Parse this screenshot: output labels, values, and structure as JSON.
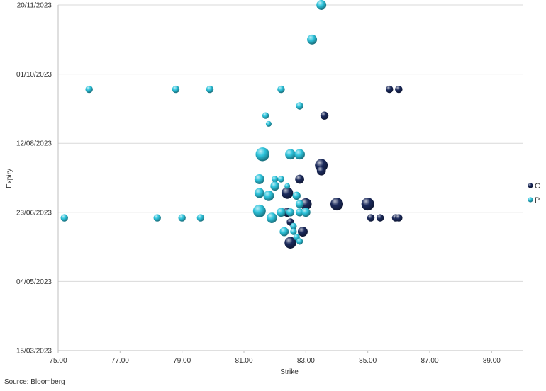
{
  "chart_data": {
    "type": "scatter",
    "xlabel": "Strike",
    "ylabel": "Expiry",
    "xlim": [
      75,
      90
    ],
    "x_ticks": [
      "75.00",
      "77.00",
      "79.00",
      "81.00",
      "83.00",
      "85.00",
      "87.00",
      "89.00"
    ],
    "x_tick_values": [
      75,
      77,
      79,
      81,
      83,
      85,
      87,
      89
    ],
    "y_ticks": [
      "15/03/2023",
      "04/05/2023",
      "23/06/2023",
      "12/08/2023",
      "01/10/2023",
      "20/11/2023"
    ],
    "y_tick_values": [
      "2023-03-15",
      "2023-05-04",
      "2023-06-23",
      "2023-08-12",
      "2023-10-01",
      "2023-11-20"
    ],
    "ylim": [
      "2023-03-15",
      "2023-11-20"
    ],
    "grid": "horizontal",
    "legend_position": "right",
    "bubble_size_note": "",
    "series": [
      {
        "name": "C",
        "color": "#1b2a5c",
        "points": [
          {
            "x": 85.7,
            "y": "2023-09-20",
            "size": 1.0
          },
          {
            "x": 86.0,
            "y": "2023-09-20",
            "size": 1.0
          },
          {
            "x": 83.6,
            "y": "2023-09-01",
            "size": 1.2
          },
          {
            "x": 83.5,
            "y": "2023-07-27",
            "size": 3.0
          },
          {
            "x": 83.5,
            "y": "2023-07-23",
            "size": 1.5
          },
          {
            "x": 82.8,
            "y": "2023-07-17",
            "size": 1.5
          },
          {
            "x": 82.4,
            "y": "2023-07-07",
            "size": 2.5
          },
          {
            "x": 84.0,
            "y": "2023-06-29",
            "size": 3.0
          },
          {
            "x": 85.0,
            "y": "2023-06-29",
            "size": 3.0
          },
          {
            "x": 83.0,
            "y": "2023-06-29",
            "size": 2.5
          },
          {
            "x": 82.4,
            "y": "2023-06-23",
            "size": 1.5
          },
          {
            "x": 85.1,
            "y": "2023-06-19",
            "size": 1.0
          },
          {
            "x": 85.4,
            "y": "2023-06-19",
            "size": 1.0
          },
          {
            "x": 85.9,
            "y": "2023-06-19",
            "size": 1.0
          },
          {
            "x": 86.0,
            "y": "2023-06-19",
            "size": 1.0
          },
          {
            "x": 82.5,
            "y": "2023-06-16",
            "size": 1.0
          },
          {
            "x": 82.9,
            "y": "2023-06-09",
            "size": 1.8
          },
          {
            "x": 82.5,
            "y": "2023-06-01",
            "size": 2.5
          }
        ]
      },
      {
        "name": "P",
        "color": "#2ec4dc",
        "points": [
          {
            "x": 83.5,
            "y": "2023-11-20",
            "size": 1.8
          },
          {
            "x": 83.2,
            "y": "2023-10-26",
            "size": 1.8
          },
          {
            "x": 76.0,
            "y": "2023-09-20",
            "size": 1.0
          },
          {
            "x": 78.8,
            "y": "2023-09-20",
            "size": 1.0
          },
          {
            "x": 79.9,
            "y": "2023-09-20",
            "size": 1.0
          },
          {
            "x": 82.2,
            "y": "2023-09-20",
            "size": 1.0
          },
          {
            "x": 82.8,
            "y": "2023-09-08",
            "size": 1.0
          },
          {
            "x": 81.7,
            "y": "2023-09-01",
            "size": 0.8
          },
          {
            "x": 81.8,
            "y": "2023-08-26",
            "size": 0.6
          },
          {
            "x": 81.6,
            "y": "2023-08-04",
            "size": 3.5
          },
          {
            "x": 82.5,
            "y": "2023-08-04",
            "size": 2.0
          },
          {
            "x": 82.8,
            "y": "2023-08-04",
            "size": 2.0
          },
          {
            "x": 81.5,
            "y": "2023-07-17",
            "size": 1.8
          },
          {
            "x": 82.0,
            "y": "2023-07-17",
            "size": 0.8
          },
          {
            "x": 82.2,
            "y": "2023-07-17",
            "size": 0.8
          },
          {
            "x": 82.0,
            "y": "2023-07-12",
            "size": 1.5
          },
          {
            "x": 82.4,
            "y": "2023-07-12",
            "size": 0.6
          },
          {
            "x": 81.5,
            "y": "2023-07-07",
            "size": 1.8
          },
          {
            "x": 81.8,
            "y": "2023-07-05",
            "size": 2.0
          },
          {
            "x": 82.7,
            "y": "2023-07-05",
            "size": 1.2
          },
          {
            "x": 82.8,
            "y": "2023-06-29",
            "size": 1.2
          },
          {
            "x": 81.5,
            "y": "2023-06-24",
            "size": 3.0
          },
          {
            "x": 81.9,
            "y": "2023-06-19",
            "size": 2.0
          },
          {
            "x": 82.2,
            "y": "2023-06-23",
            "size": 1.5
          },
          {
            "x": 82.5,
            "y": "2023-06-23",
            "size": 1.2
          },
          {
            "x": 82.8,
            "y": "2023-06-23",
            "size": 1.2
          },
          {
            "x": 83.0,
            "y": "2023-06-23",
            "size": 1.5
          },
          {
            "x": 75.2,
            "y": "2023-06-19",
            "size": 1.0
          },
          {
            "x": 78.2,
            "y": "2023-06-19",
            "size": 1.0
          },
          {
            "x": 79.0,
            "y": "2023-06-19",
            "size": 1.0
          },
          {
            "x": 79.6,
            "y": "2023-06-19",
            "size": 1.0
          },
          {
            "x": 82.6,
            "y": "2023-06-13",
            "size": 0.8
          },
          {
            "x": 82.3,
            "y": "2023-06-09",
            "size": 1.5
          },
          {
            "x": 82.6,
            "y": "2023-06-09",
            "size": 0.8
          },
          {
            "x": 82.7,
            "y": "2023-06-05",
            "size": 0.8
          },
          {
            "x": 82.8,
            "y": "2023-06-02",
            "size": 0.8
          }
        ]
      }
    ]
  },
  "source": "Source: Bloomberg"
}
